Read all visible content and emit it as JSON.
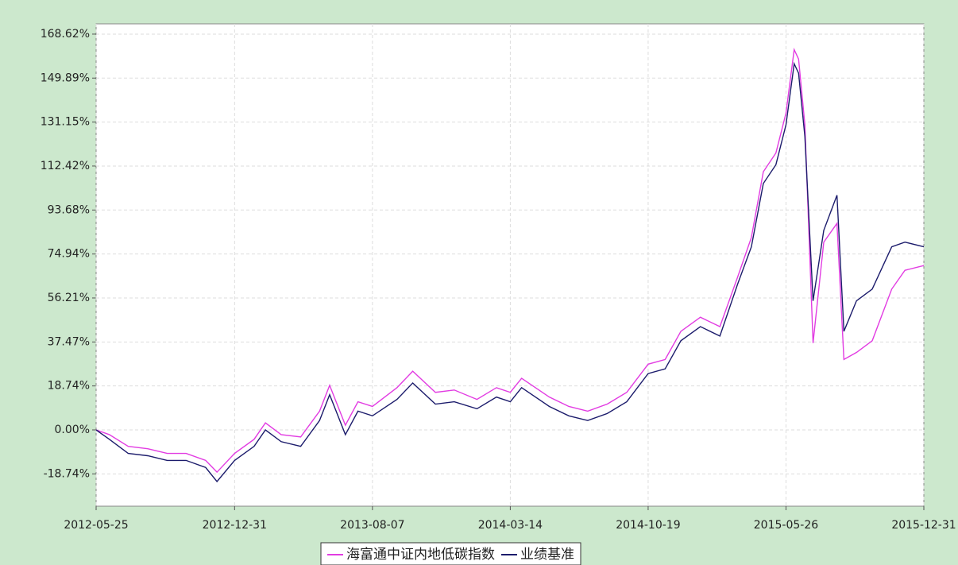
{
  "chart_data": {
    "type": "line",
    "x": [
      "2012-05-25",
      "2012-06-15",
      "2012-07-15",
      "2012-08-15",
      "2012-09-15",
      "2012-10-15",
      "2012-11-15",
      "2012-12-03",
      "2012-12-31",
      "2013-01-31",
      "2013-02-18",
      "2013-03-15",
      "2013-04-15",
      "2013-05-15",
      "2013-05-31",
      "2013-06-25",
      "2013-07-15",
      "2013-08-07",
      "2013-09-15",
      "2013-10-10",
      "2013-11-15",
      "2013-12-15",
      "2014-01-20",
      "2014-02-20",
      "2014-03-14",
      "2014-04-01",
      "2014-05-15",
      "2014-06-15",
      "2014-07-15",
      "2014-08-15",
      "2014-09-15",
      "2014-10-19",
      "2014-11-15",
      "2014-12-10",
      "2015-01-10",
      "2015-02-10",
      "2015-03-10",
      "2015-04-01",
      "2015-04-20",
      "2015-05-10",
      "2015-05-26",
      "2015-06-08",
      "2015-06-15",
      "2015-06-25",
      "2015-07-08",
      "2015-07-25",
      "2015-08-15",
      "2015-08-26",
      "2015-09-15",
      "2015-10-10",
      "2015-11-10",
      "2015-12-01",
      "2015-12-31"
    ],
    "series": [
      {
        "name": "海富通中证内地低碳指数",
        "color": "#e23ce2",
        "values": [
          0,
          -2,
          -7,
          -8,
          -10,
          -10,
          -13,
          -18,
          -10,
          -4,
          3,
          -2,
          -3,
          8,
          19,
          2,
          12,
          10,
          18,
          25,
          16,
          17,
          13,
          18,
          16,
          22,
          14,
          10,
          8,
          11,
          16,
          28,
          30,
          42,
          48,
          44,
          65,
          82,
          110,
          118,
          135,
          162,
          158,
          130,
          37,
          80,
          88,
          30,
          33,
          38,
          60,
          68,
          70
        ]
      },
      {
        "name": "业绩基准",
        "color": "#1c1c6c",
        "values": [
          0,
          -4,
          -10,
          -11,
          -13,
          -13,
          -16,
          -22,
          -13,
          -7,
          0,
          -5,
          -7,
          4,
          15,
          -2,
          8,
          6,
          13,
          20,
          11,
          12,
          9,
          14,
          12,
          18,
          10,
          6,
          4,
          7,
          12,
          24,
          26,
          38,
          44,
          40,
          62,
          78,
          105,
          113,
          130,
          156,
          152,
          125,
          55,
          85,
          100,
          42,
          55,
          60,
          78,
          80,
          78
        ]
      }
    ],
    "xlim": [
      "2012-05-25",
      "2015-12-31"
    ],
    "xticks": [
      "2012-05-25",
      "2012-12-31",
      "2013-08-07",
      "2014-03-14",
      "2014-10-19",
      "2015-05-26",
      "2015-12-31"
    ],
    "ylim": [
      -32.5,
      173.0
    ],
    "yticks": [
      {
        "value": -18.74,
        "label": "-18.74%"
      },
      {
        "value": 0,
        "label": "0.00%"
      },
      {
        "value": 18.74,
        "label": "18.74%"
      },
      {
        "value": 37.47,
        "label": "37.47%"
      },
      {
        "value": 56.21,
        "label": "56.21%"
      },
      {
        "value": 74.94,
        "label": "74.94%"
      },
      {
        "value": 93.68,
        "label": "93.68%"
      },
      {
        "value": 112.42,
        "label": "112.42%"
      },
      {
        "value": 131.15,
        "label": "131.15%"
      },
      {
        "value": 149.89,
        "label": "149.89%"
      },
      {
        "value": 168.62,
        "label": "168.62%"
      }
    ],
    "grid": true,
    "legend": "bottom"
  }
}
